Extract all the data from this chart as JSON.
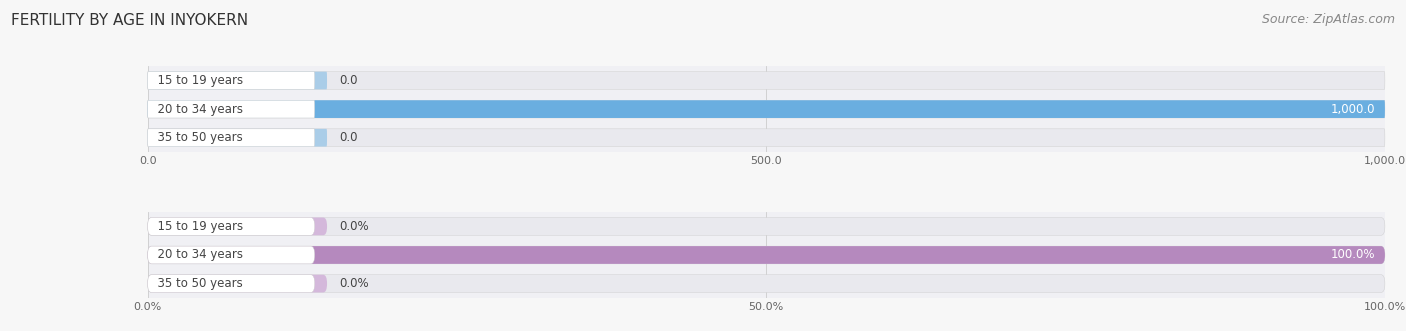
{
  "title": "FERTILITY BY AGE IN INYOKERN",
  "source": "Source: ZipAtlas.com",
  "categories": [
    "15 to 19 years",
    "20 to 34 years",
    "35 to 50 years"
  ],
  "abs_values": [
    0.0,
    1000.0,
    0.0
  ],
  "pct_values": [
    0.0,
    100.0,
    0.0
  ],
  "abs_xticks": [
    0.0,
    500.0,
    1000.0
  ],
  "pct_xticks": [
    0.0,
    50.0,
    100.0
  ],
  "abs_xtick_labels": [
    "0.0",
    "500.0",
    "1,000.0"
  ],
  "pct_xtick_labels": [
    "0.0%",
    "50.0%",
    "100.0%"
  ],
  "bar_color_blue": "#6aaee0",
  "bar_color_blue_light": "#aacde8",
  "bar_color_purple": "#b589be",
  "bar_color_purple_light": "#d4b8db",
  "bar_bg_color": "#e9e9ee",
  "fig_bg_color": "#f7f7f7",
  "subplot_bg_color": "#f0f0f4",
  "label_color_dark": "#444444",
  "label_color_white": "#ffffff",
  "title_color": "#333333",
  "source_color": "#888888",
  "title_fontsize": 11,
  "source_fontsize": 9,
  "value_fontsize": 8.5,
  "tick_fontsize": 8,
  "category_fontsize": 8.5,
  "bar_height": 0.62,
  "bar_gap": 0.38,
  "abs_max": 1000,
  "pct_max": 100,
  "abs_value_fmt": [
    "0.0",
    "1,000.0",
    "0.0"
  ],
  "pct_value_fmt": [
    "0.0%",
    "100.0%",
    "0.0%"
  ]
}
